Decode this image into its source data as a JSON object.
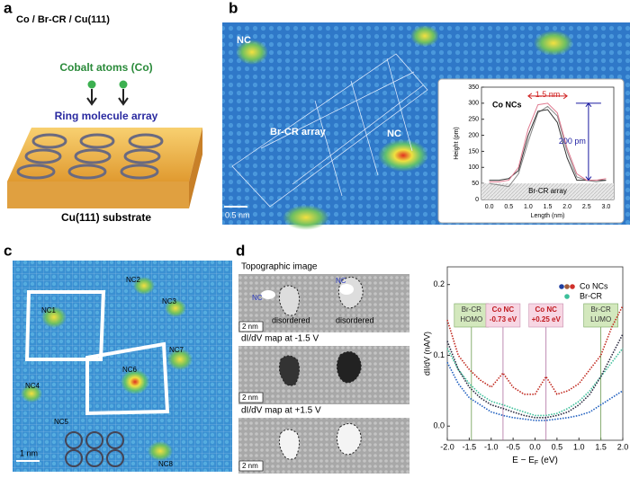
{
  "panels": {
    "a": {
      "label": "a",
      "heading": "Co / Br-CR / Cu(111)",
      "atoms": "Cobalt atoms (Co)",
      "array": "Ring molecule array",
      "substrate": "Cu(111) substrate"
    },
    "b": {
      "label": "b",
      "nc_left": "NC",
      "array": "Br-CR array",
      "nc_center": "NC",
      "scale": "0.5 nm"
    },
    "c": {
      "label": "c",
      "ncs": [
        "NC1",
        "NC2",
        "NC3",
        "NC4",
        "NC5",
        "NC6",
        "NC7",
        "NC8"
      ],
      "scale": "1 nm"
    },
    "d": {
      "label": "d",
      "images": [
        {
          "caption": "Topographic image",
          "tags": [
            "NC",
            "NC",
            "disordered",
            "disordered"
          ],
          "scale": "2 nm"
        },
        {
          "caption": "dI/dV map at -1.5 V",
          "scale": "2 nm"
        },
        {
          "caption": "dI/dV map at +1.5 V",
          "scale": "2 nm"
        }
      ]
    }
  },
  "chart_data": [
    {
      "type": "line",
      "title": "Co NCs",
      "x_label": "Length (nm)",
      "y_label": "Height (pm)",
      "x": [
        0,
        0.25,
        0.5,
        0.75,
        1,
        1.25,
        1.5,
        1.75,
        2,
        2.25,
        2.5,
        2.75,
        3
      ],
      "series": [
        {
          "color": "#888888",
          "values": [
            50,
            45,
            40,
            80,
            180,
            270,
            290,
            260,
            150,
            70,
            60,
            55,
            60
          ]
        },
        {
          "color": "#333333",
          "values": [
            60,
            60,
            65,
            90,
            200,
            275,
            280,
            240,
            130,
            60,
            60,
            60,
            60
          ]
        },
        {
          "color": "#e07a90",
          "values": [
            55,
            55,
            60,
            100,
            220,
            295,
            300,
            270,
            160,
            80,
            60,
            60,
            65
          ]
        }
      ],
      "xlim": [
        -0.2,
        3.2
      ],
      "ylim": [
        0,
        350
      ],
      "xticks": [
        {
          "value": 0,
          "label": "0.0"
        },
        0.5,
        {
          "value": 1,
          "label": "1.0"
        },
        1.5,
        {
          "value": 2,
          "label": "2.0"
        },
        2.5,
        {
          "value": 3,
          "label": "3.0"
        }
      ],
      "yticks": [
        0,
        50,
        100,
        150,
        200,
        250,
        300,
        350
      ],
      "baseline": {
        "height": 50,
        "label": "Br-CR array"
      },
      "width_label": "1.5 nm",
      "height_label": "200 pm"
    },
    {
      "type": "line",
      "y_label": "dI/dV (nA/V)",
      "x_label": {
        "main": "E − E",
        "sub": "F",
        "unit": " (eV)"
      },
      "x": [
        -2,
        -1.75,
        -1.5,
        -1.25,
        -1,
        -0.73,
        -0.5,
        -0.25,
        0,
        0.25,
        0.5,
        0.75,
        1,
        1.25,
        1.5,
        1.75,
        2
      ],
      "series": [
        {
          "name": "Co NCs",
          "color": "#c0281e",
          "values": [
            0.15,
            0.1,
            0.08,
            0.065,
            0.055,
            0.075,
            0.055,
            0.045,
            0.045,
            0.07,
            0.045,
            0.05,
            0.06,
            0.08,
            0.1,
            0.14,
            0.17
          ]
        },
        {
          "name": "Br-CR",
          "color": "#3cbf9a",
          "values": [
            0.11,
            0.08,
            0.06,
            0.045,
            0.035,
            0.03,
            0.025,
            0.02,
            0.015,
            0.015,
            0.018,
            0.025,
            0.035,
            0.05,
            0.07,
            0.09,
            0.11
          ]
        },
        {
          "color": "#1f5fbf",
          "values": [
            0.09,
            0.06,
            0.04,
            0.03,
            0.02,
            0.015,
            0.012,
            0.01,
            0.008,
            0.008,
            0.01,
            0.012,
            0.015,
            0.02,
            0.03,
            0.04,
            0.05
          ]
        },
        {
          "color": "#2a2a40",
          "values": [
            0.12,
            0.08,
            0.055,
            0.04,
            0.03,
            0.025,
            0.02,
            0.015,
            0.012,
            0.012,
            0.015,
            0.02,
            0.03,
            0.045,
            0.07,
            0.1,
            0.13
          ]
        }
      ],
      "legend_dots": [
        "#1f3fa0",
        "#a05a3a",
        "#d0302a"
      ],
      "xlim": [
        -2,
        2
      ],
      "ylim": [
        -0.02,
        0.225
      ],
      "xticks": [
        {
          "value": -2,
          "label": "-2.0"
        },
        -1.5,
        {
          "value": -1,
          "label": "-1.0"
        },
        -0.5,
        {
          "value": 0,
          "label": "0.0"
        },
        0.5,
        {
          "value": 1,
          "label": "1.0"
        },
        1.5,
        {
          "value": 2,
          "label": "2.0"
        }
      ],
      "yticks": [
        {
          "value": 0,
          "label": "0.0"
        },
        0.1,
        0.2
      ],
      "markers": [
        {
          "x": -1.45,
          "lines": [
            "Br-CR",
            "HOMO"
          ],
          "kind": "molecule"
        },
        {
          "x": -0.73,
          "lines": [
            "Co NC",
            "-0.73 eV"
          ],
          "kind": "cluster"
        },
        {
          "x": 0.25,
          "lines": [
            "Co NC",
            "+0.25 eV"
          ],
          "kind": "cluster"
        },
        {
          "x": 1.5,
          "lines": [
            "Br-CR",
            "LUMO"
          ],
          "kind": "molecule"
        }
      ]
    }
  ]
}
